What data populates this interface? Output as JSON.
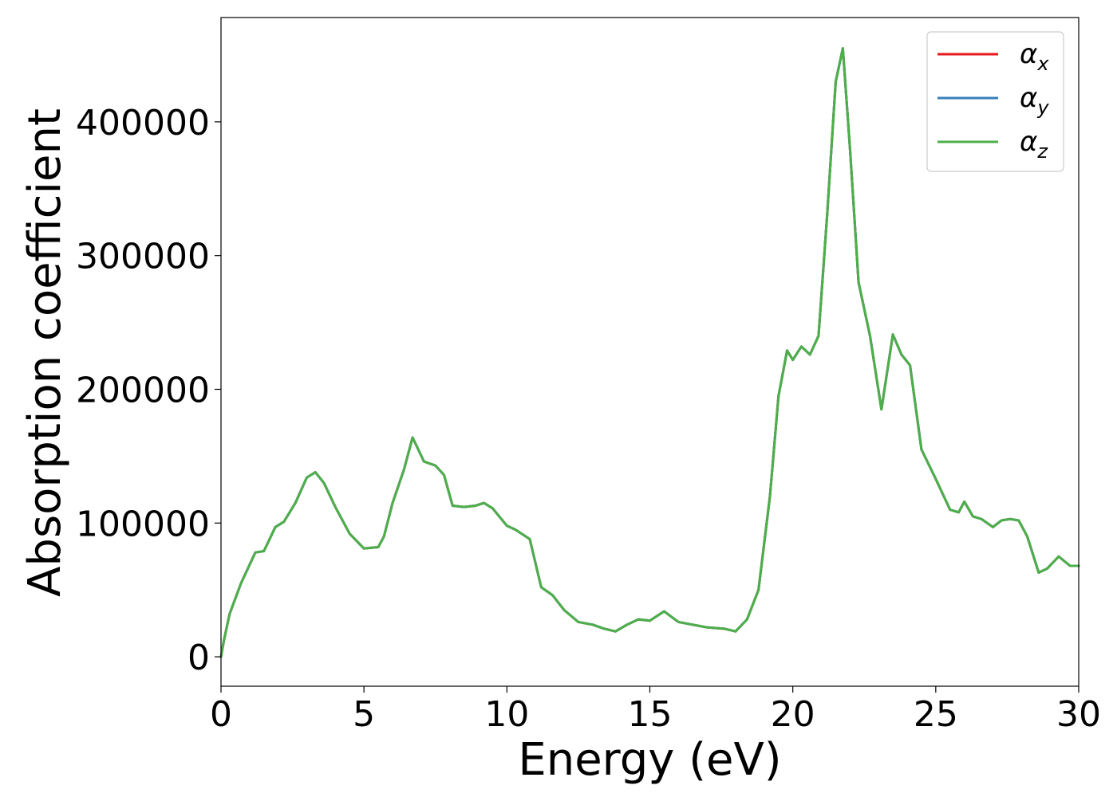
{
  "chart_data": {
    "type": "line",
    "title": "",
    "xlabel": "Energy (eV)",
    "ylabel": "Absorption coefficient",
    "xlim": [
      0,
      30
    ],
    "ylim": [
      -22000,
      478000
    ],
    "xticks": [
      0,
      5,
      10,
      15,
      20,
      25,
      30
    ],
    "xtick_labels": [
      "0",
      "5",
      "10",
      "15",
      "20",
      "25",
      "30"
    ],
    "yticks": [
      0,
      100000,
      200000,
      300000,
      400000
    ],
    "ytick_labels": [
      "0",
      "100000",
      "200000",
      "300000",
      "400000"
    ],
    "grid": false,
    "legend_position": "top-right",
    "x": [
      0,
      0.1,
      0.3,
      0.7,
      1.2,
      1.5,
      1.9,
      2.2,
      2.6,
      3.0,
      3.3,
      3.6,
      4.0,
      4.5,
      5.0,
      5.5,
      5.7,
      6.0,
      6.4,
      6.7,
      7.1,
      7.5,
      7.8,
      8.1,
      8.5,
      8.9,
      9.2,
      9.5,
      10.0,
      10.3,
      10.8,
      11.2,
      11.6,
      12.0,
      12.5,
      13.0,
      13.4,
      13.8,
      14.2,
      14.6,
      15.0,
      15.5,
      16.0,
      16.5,
      17.0,
      17.6,
      18.0,
      18.4,
      18.8,
      19.2,
      19.5,
      19.8,
      20.0,
      20.3,
      20.6,
      20.9,
      21.2,
      21.5,
      21.75,
      22.0,
      22.3,
      22.7,
      23.1,
      23.5,
      23.8,
      24.1,
      24.5,
      25.0,
      25.5,
      25.8,
      26.0,
      26.3,
      26.6,
      27.0,
      27.3,
      27.6,
      27.9,
      28.2,
      28.6,
      28.9,
      29.3,
      29.7,
      30.0
    ],
    "series": [
      {
        "name": "αx",
        "color": "#e41a1c",
        "values": [
          0,
          12000,
          32000,
          55000,
          78000,
          79000,
          97000,
          101000,
          115000,
          134000,
          138000,
          130000,
          112000,
          92000,
          81000,
          82000,
          90000,
          115000,
          140000,
          164000,
          146000,
          143000,
          136000,
          113000,
          112000,
          113000,
          115000,
          111000,
          98000,
          95000,
          88000,
          52000,
          46000,
          35000,
          26000,
          24000,
          21000,
          19000,
          24000,
          28000,
          27000,
          34000,
          26000,
          24000,
          22000,
          21000,
          19000,
          28000,
          50000,
          120000,
          195000,
          229000,
          222000,
          232000,
          226000,
          240000,
          330000,
          430000,
          455000,
          380000,
          280000,
          240000,
          185000,
          241000,
          226000,
          218000,
          155000,
          133000,
          110000,
          108000,
          116000,
          105000,
          103000,
          97000,
          102000,
          103000,
          102000,
          90000,
          63000,
          66000,
          75000,
          68000,
          68000
        ]
      },
      {
        "name": "αy",
        "color": "#377eb8",
        "values": [
          0,
          12000,
          32000,
          55000,
          78000,
          79000,
          97000,
          101000,
          115000,
          134000,
          138000,
          130000,
          112000,
          92000,
          81000,
          82000,
          90000,
          115000,
          140000,
          164000,
          146000,
          143000,
          136000,
          113000,
          112000,
          113000,
          115000,
          111000,
          98000,
          95000,
          88000,
          52000,
          46000,
          35000,
          26000,
          24000,
          21000,
          19000,
          24000,
          28000,
          27000,
          34000,
          26000,
          24000,
          22000,
          21000,
          19000,
          28000,
          50000,
          120000,
          195000,
          229000,
          222000,
          232000,
          226000,
          240000,
          330000,
          430000,
          455000,
          380000,
          280000,
          240000,
          185000,
          241000,
          226000,
          218000,
          155000,
          133000,
          110000,
          108000,
          116000,
          105000,
          103000,
          97000,
          102000,
          103000,
          102000,
          90000,
          63000,
          66000,
          75000,
          68000,
          68000
        ]
      },
      {
        "name": "αz",
        "color": "#4daf4a",
        "values": [
          0,
          12000,
          32000,
          55000,
          78000,
          79000,
          97000,
          101000,
          115000,
          134000,
          138000,
          130000,
          112000,
          92000,
          81000,
          82000,
          90000,
          115000,
          140000,
          164000,
          146000,
          143000,
          136000,
          113000,
          112000,
          113000,
          115000,
          111000,
          98000,
          95000,
          88000,
          52000,
          46000,
          35000,
          26000,
          24000,
          21000,
          19000,
          24000,
          28000,
          27000,
          34000,
          26000,
          24000,
          22000,
          21000,
          19000,
          28000,
          50000,
          120000,
          195000,
          229000,
          222000,
          232000,
          226000,
          240000,
          330000,
          430000,
          455000,
          380000,
          280000,
          240000,
          185000,
          241000,
          226000,
          218000,
          155000,
          133000,
          110000,
          108000,
          116000,
          105000,
          103000,
          97000,
          102000,
          103000,
          102000,
          90000,
          63000,
          66000,
          75000,
          68000,
          68000
        ]
      }
    ],
    "legend": [
      {
        "symbol": "α",
        "subscript": "x"
      },
      {
        "symbol": "α",
        "subscript": "y"
      },
      {
        "symbol": "α",
        "subscript": "z"
      }
    ]
  }
}
